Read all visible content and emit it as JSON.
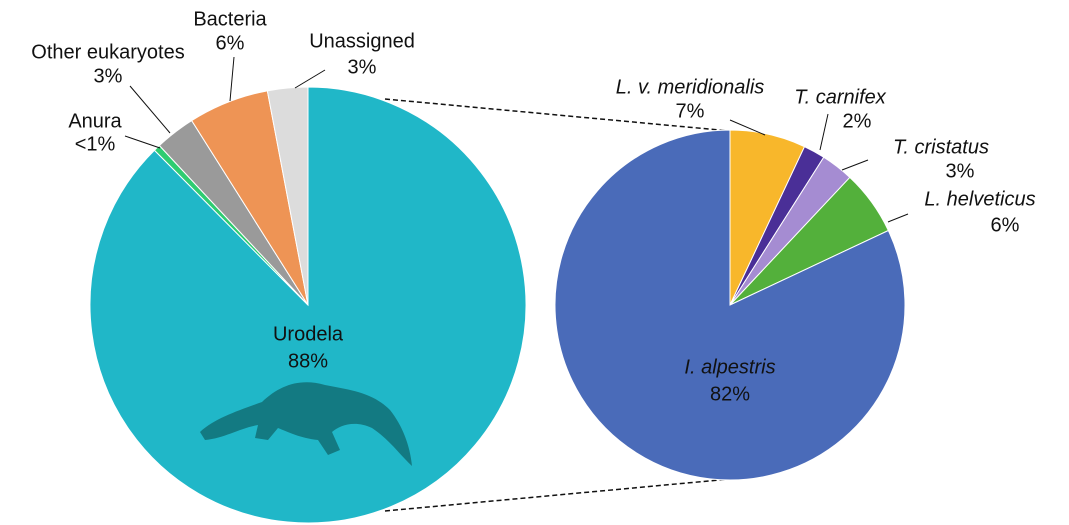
{
  "chart_data": [
    {
      "type": "pie",
      "categories": [
        "Urodela",
        "Anura",
        "Other eukaryotes",
        "Bacteria",
        "Unassigned"
      ],
      "values": [
        88,
        0.5,
        3,
        6,
        3
      ],
      "value_labels": [
        "88%",
        "<1%",
        "3%",
        "6%",
        "3%"
      ],
      "colors": [
        "#20b7c8",
        "#2ecc71",
        "#9a9a9a",
        "#ee9455",
        "#dcdcdc"
      ]
    },
    {
      "type": "pie",
      "categories": [
        "L. v. meridionalis",
        "T. carnifex",
        "T. cristatus",
        "L. helveticus",
        "I. alpestris"
      ],
      "values": [
        7,
        2,
        3,
        6,
        82
      ],
      "value_labels": [
        "7%",
        "2%",
        "3%",
        "6%",
        "82%"
      ],
      "colors": [
        "#f8b72b",
        "#4a2f97",
        "#a58cd2",
        "#53b03b",
        "#4a6bb9"
      ]
    }
  ]
}
